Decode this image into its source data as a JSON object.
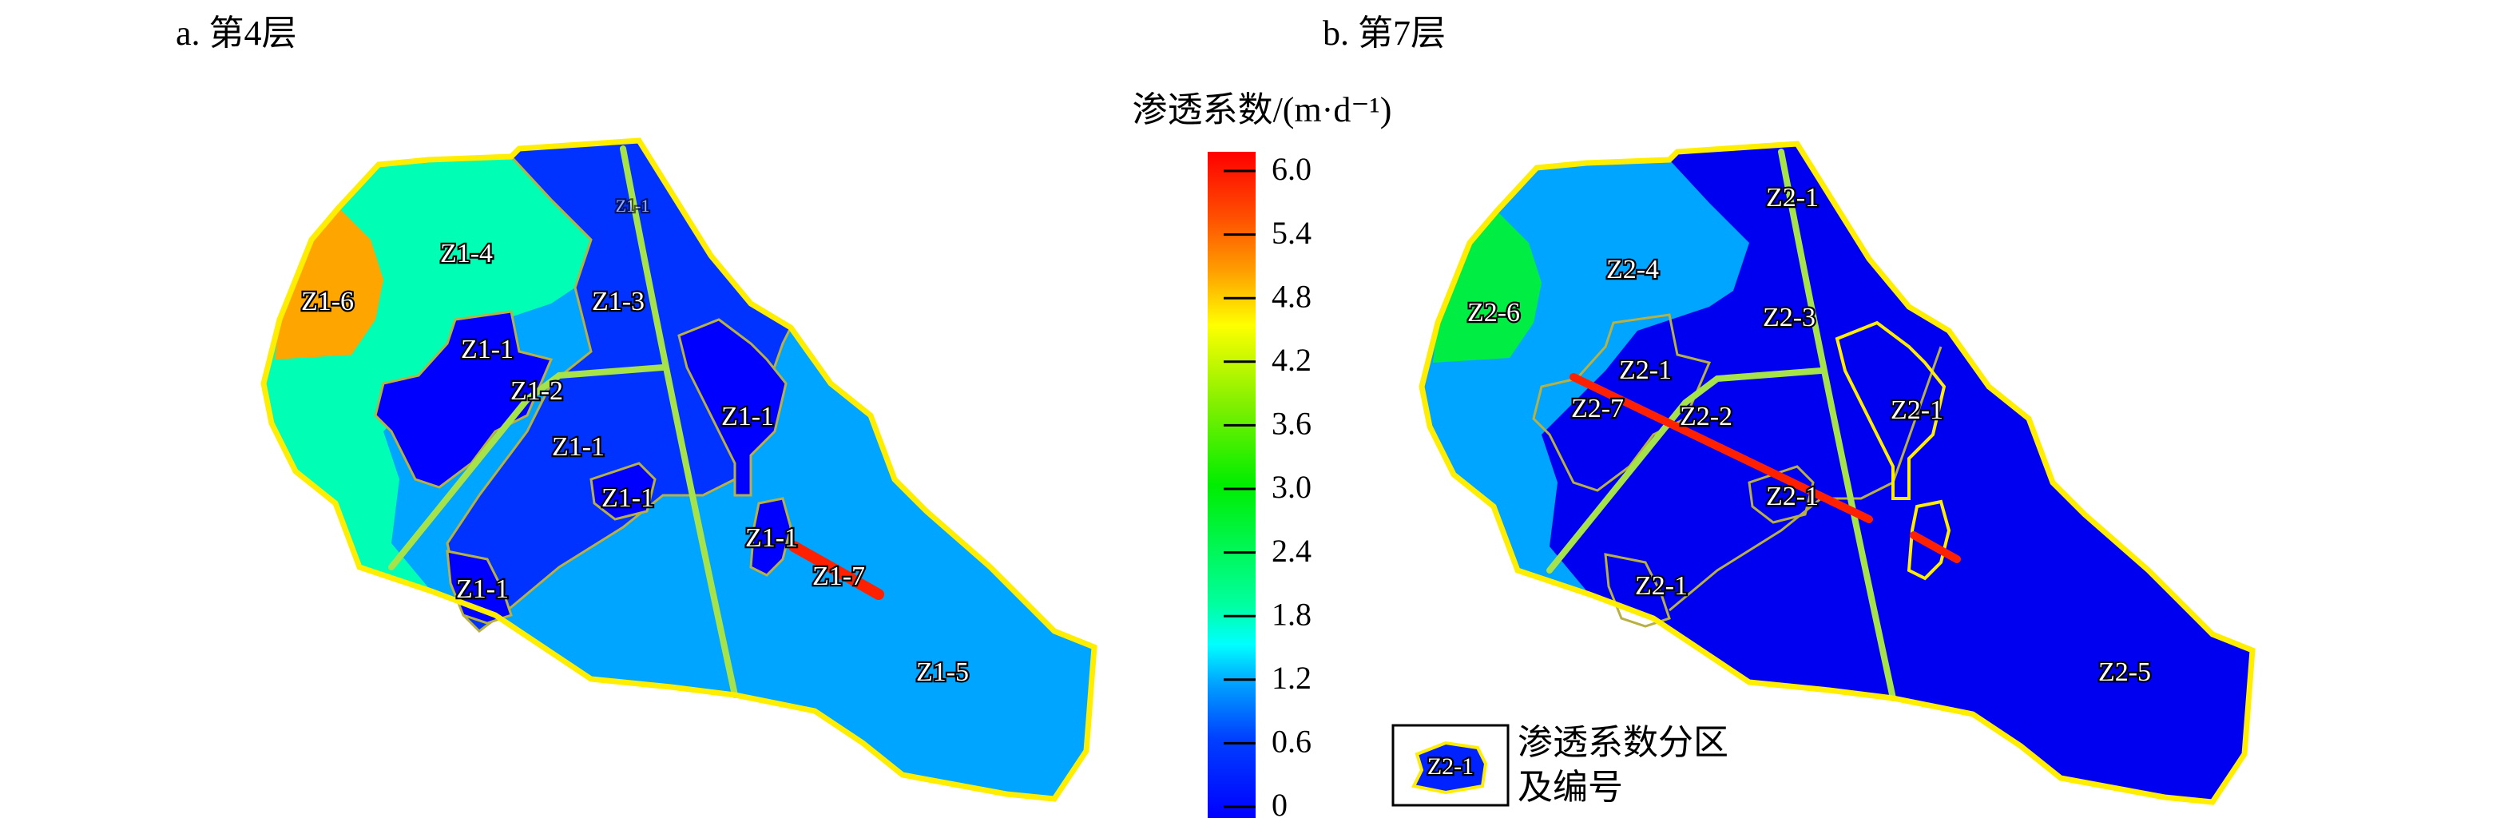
{
  "panel_a": {
    "title": "a. 第4层",
    "labels": [
      "Z1-4",
      "Z1-6",
      "Z1-3",
      "Z1-1",
      "Z1-2",
      "Z1-1",
      "Z1-1",
      "Z1-1",
      "Z1-1",
      "Z1-7",
      "Z1-1",
      "Z1-5",
      "Z1-1"
    ],
    "colors": {
      "Z1-1": "#0000ff",
      "Z1-3": "#0033ff",
      "Z1-4": "#00ffb4",
      "Z1-5": "#00a5ff",
      "Z1-6": "#ffa500",
      "Z1-7": "#ff2000"
    }
  },
  "panel_b": {
    "title": "b. 第7层",
    "labels": [
      "Z2-1",
      "Z2-4",
      "Z2-6",
      "Z2-3",
      "Z2-1",
      "Z2-7",
      "Z2-2",
      "Z2-1",
      "Z2-1",
      "Z2-1",
      "Z2-5"
    ],
    "colors": {
      "Z2-1": "#0000f0",
      "Z2-4": "#00a5ff",
      "Z2-6": "#00ee44",
      "Z2-7": "#ff2000"
    }
  },
  "colorbar": {
    "title": "渗透系数/(m·d⁻¹)",
    "ticks": [
      "6.0",
      "5.4",
      "4.8",
      "4.2",
      "3.6",
      "3.0",
      "2.4",
      "1.8",
      "1.2",
      "0.6",
      "0"
    ],
    "range": [
      0,
      6.0
    ],
    "colormap": [
      "#0000ff",
      "#0040ff",
      "#00a0ff",
      "#00ffff",
      "#00ffa0",
      "#00ee00",
      "#80f000",
      "#ffff00",
      "#ffa000",
      "#ff5000",
      "#ff0000"
    ]
  },
  "legend": {
    "sample_label": "Z2-1",
    "line1": "渗透系数分区",
    "line2": "及编号"
  }
}
